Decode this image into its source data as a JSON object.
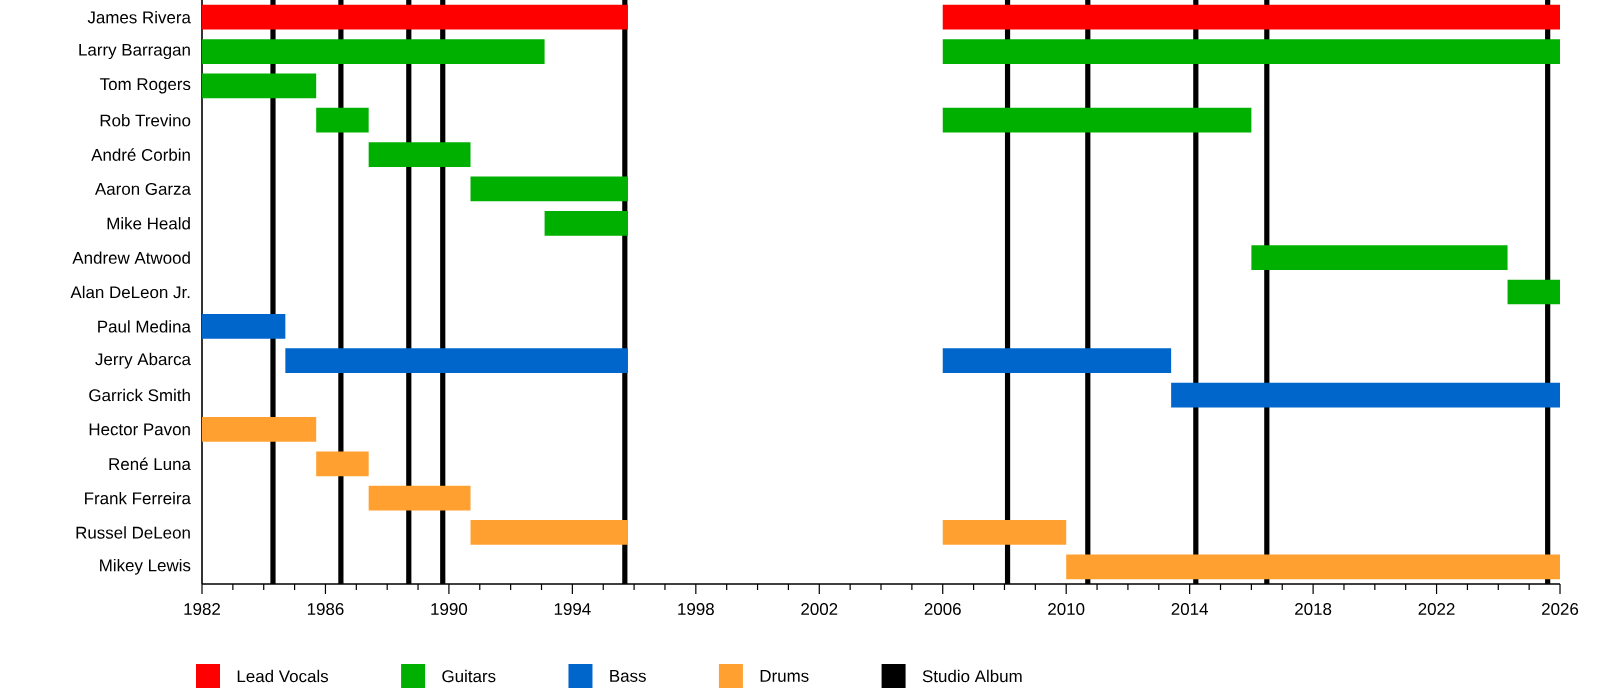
{
  "chart_data": {
    "type": "bar",
    "orientation": "horizontal",
    "categories": [
      "James Rivera",
      "Larry Barragan",
      "Tom Rogers",
      "Rob Trevino",
      "André Corbin",
      "Aaron Garza",
      "Mike Heald",
      "Andrew Atwood",
      "Alan DeLeon Jr.",
      "Paul Medina",
      "Jerry Abarca",
      "Garrick Smith",
      "Hector Pavon",
      "René Luna",
      "Frank Ferreira",
      "Russel DeLeon",
      "Mikey Lewis"
    ],
    "series": [
      {
        "name": "Lead Vocals",
        "color": "#ff0000",
        "base": [
          1982,
          null,
          null,
          null,
          null,
          null,
          null,
          null,
          null,
          null,
          null,
          null,
          null,
          null,
          null,
          null,
          null
        ],
        "values": [
          13.8,
          null,
          null,
          null,
          null,
          null,
          null,
          null,
          null,
          null,
          null,
          null,
          null,
          null,
          null,
          null,
          null
        ]
      },
      {
        "color": "#ff0000",
        "base": [
          2006,
          null,
          null,
          null,
          null,
          null,
          null,
          null,
          null,
          null,
          null,
          null,
          null,
          null,
          null,
          null,
          null
        ],
        "values": [
          20,
          null,
          null,
          null,
          null,
          null,
          null,
          null,
          null,
          null,
          null,
          null,
          null,
          null,
          null,
          null,
          null
        ]
      },
      {
        "name": "Guitars",
        "color": "#00b000",
        "base": [
          null,
          1982,
          1982,
          1985.7,
          1987.4,
          1990.7,
          1993.1,
          null,
          null,
          null,
          null,
          null,
          null,
          null,
          null,
          null,
          null
        ],
        "values": [
          null,
          11.1,
          3.7,
          1.7,
          3.3,
          5.1,
          2.7,
          null,
          null,
          null,
          null,
          null,
          null,
          null,
          null,
          null,
          null
        ]
      },
      {
        "color": "#00b000",
        "base": [
          null,
          2006,
          null,
          2006,
          null,
          null,
          null,
          2016,
          2024.3,
          null,
          null,
          null,
          null,
          null,
          null,
          null,
          null
        ],
        "values": [
          null,
          20,
          null,
          10,
          null,
          null,
          null,
          8.3,
          1.7,
          null,
          null,
          null,
          null,
          null,
          null,
          null,
          null
        ]
      },
      {
        "name": "Bass",
        "color": "#0066cc",
        "base": [
          null,
          null,
          null,
          null,
          null,
          null,
          null,
          null,
          null,
          1982,
          1984.7,
          null,
          null,
          null,
          null,
          null,
          null
        ],
        "values": [
          null,
          null,
          null,
          null,
          null,
          null,
          null,
          null,
          null,
          2.7,
          11.1,
          null,
          null,
          null,
          null,
          null,
          null
        ]
      },
      {
        "color": "#0066cc",
        "base": [
          null,
          null,
          null,
          null,
          null,
          null,
          null,
          null,
          null,
          null,
          2006,
          2013.4,
          null,
          null,
          null,
          null,
          null
        ],
        "values": [
          null,
          null,
          null,
          null,
          null,
          null,
          null,
          null,
          null,
          null,
          7.4,
          12.6,
          null,
          null,
          null,
          null,
          null
        ]
      },
      {
        "name": "Drums",
        "color": "#ffa030",
        "base": [
          null,
          null,
          null,
          null,
          null,
          null,
          null,
          null,
          null,
          null,
          null,
          null,
          1982,
          1985.7,
          1987.4,
          1990.7,
          null
        ],
        "values": [
          null,
          null,
          null,
          null,
          null,
          null,
          null,
          null,
          null,
          null,
          null,
          null,
          3.7,
          1.7,
          3.3,
          5.1,
          null
        ]
      },
      {
        "color": "#ffa030",
        "base": [
          null,
          null,
          null,
          null,
          null,
          null,
          null,
          null,
          null,
          null,
          null,
          null,
          null,
          null,
          null,
          2006,
          2010
        ],
        "values": [
          null,
          null,
          null,
          null,
          null,
          null,
          null,
          null,
          null,
          null,
          null,
          null,
          null,
          null,
          null,
          4,
          16
        ]
      }
    ],
    "ref_lines": [
      {
        "axis": "x",
        "value": 1984.3,
        "label": "Studio Album",
        "color": "#000000"
      },
      {
        "axis": "x",
        "value": 1986.5,
        "color": "#000000"
      },
      {
        "axis": "x",
        "value": 1988.7,
        "color": "#000000"
      },
      {
        "axis": "x",
        "value": 1989.8,
        "color": "#000000"
      },
      {
        "axis": "x",
        "value": 1995.7,
        "color": "#000000"
      },
      {
        "axis": "x",
        "value": 2008.1,
        "color": "#000000"
      },
      {
        "axis": "x",
        "value": 2010.7,
        "color": "#000000"
      },
      {
        "axis": "x",
        "value": 2014.2,
        "color": "#000000"
      },
      {
        "axis": "x",
        "value": 2016.5,
        "color": "#000000"
      },
      {
        "axis": "x",
        "value": 2025.6,
        "color": "#000000"
      }
    ],
    "xlim": [
      1982,
      2026
    ],
    "xticks": [
      1982,
      1986,
      1990,
      1994,
      1998,
      2002,
      2006,
      2010,
      2014,
      2018,
      2022,
      2026
    ],
    "legend": "bottom"
  }
}
